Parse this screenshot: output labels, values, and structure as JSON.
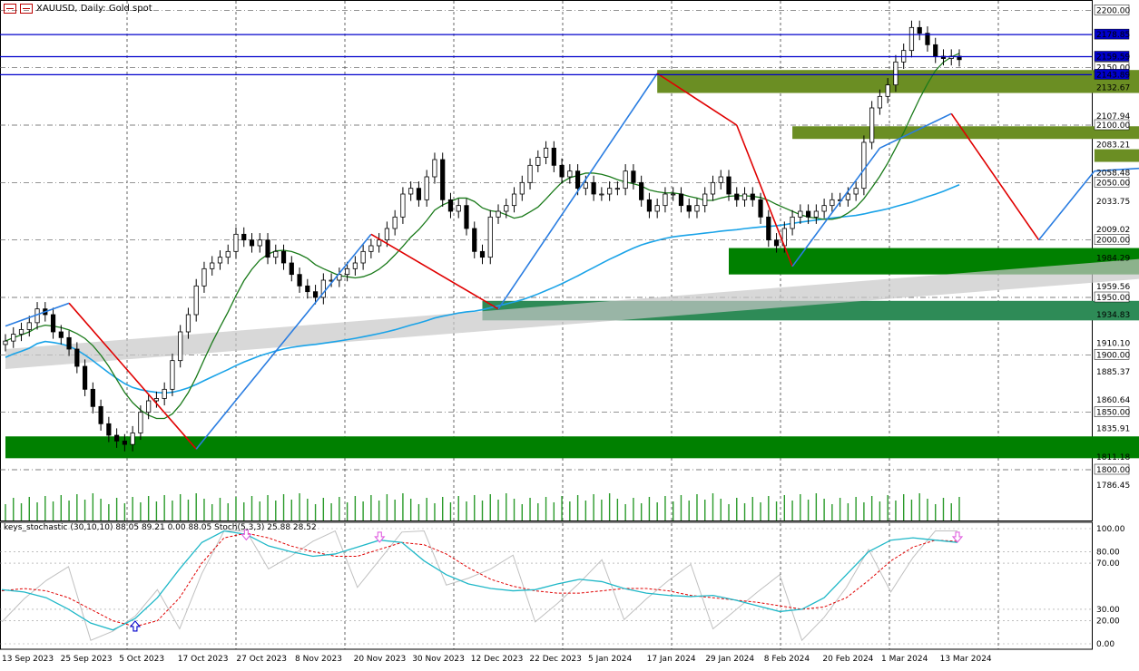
{
  "window": {
    "symbol_title": "XAUUSD, Daily:  Gold spot",
    "indicator_title": "keys_stochastic (30,10,10) 88.05 89.21 0.00 88.05 Stoch(5,3,3) 25.88 28.52"
  },
  "colors": {
    "candle_up": "#ffffff",
    "candle_down": "#000000",
    "zigzag_up": "#2a7de1",
    "zigzag_down": "#e00000",
    "ma_green": "#1a7a1a",
    "ma_blue": "#1aa3e8",
    "zone_olive": "#6b8e23",
    "zone_green": "#008000",
    "zone_teal": "#2e8b57",
    "zone_purple": "#5b1a8f",
    "level_line": "#0000cc",
    "stoch_main": "#20b8c8",
    "stoch_signal": "#e00000",
    "stoch_fast": "#c0c0c0",
    "arrow_marker": "#e060e0"
  },
  "chart_data": [
    {
      "type": "candlestick",
      "title": "XAUUSD, Daily:  Gold spot",
      "ylim": [
        1770,
        2205
      ],
      "y_ticks": [
        "2200.00",
        "2178.85",
        "2159.59",
        "2150.00",
        "2143.89",
        "2132.67",
        "2107.94",
        "2100.00",
        "2083.21",
        "2058.48",
        "2050.00",
        "2033.75",
        "2009.02",
        "2000.00",
        "1984.29",
        "1959.56",
        "1950.00",
        "1934.83",
        "1910.10",
        "1900.00",
        "1885.37",
        "1860.64",
        "1850.00",
        "1835.91",
        "1811.18",
        "1800.00",
        "1786.45"
      ],
      "x_labels": [
        "13 Sep 2023",
        "25 Sep 2023",
        "5 Oct 2023",
        "17 Oct 2023",
        "27 Oct 2023",
        "8 Nov 2023",
        "20 Nov 2023",
        "30 Nov 2023",
        "12 Dec 2023",
        "22 Dec 2023",
        "5 Jan 2024",
        "17 Jan 2024",
        "29 Jan 2024",
        "8 Feb 2024",
        "20 Feb 2024",
        "1 Mar 2024",
        "13 Mar 2024"
      ],
      "horizontal_levels": [
        2178.85,
        2159.59,
        2143.89
      ],
      "round_levels": [
        2200,
        2150,
        2100,
        2050,
        2000,
        1950,
        1900,
        1850,
        1800
      ],
      "close_series": [
        1912,
        1918,
        1922,
        1928,
        1940,
        1935,
        1920,
        1915,
        1905,
        1890,
        1870,
        1855,
        1840,
        1830,
        1825,
        1822,
        1832,
        1850,
        1860,
        1862,
        1870,
        1895,
        1920,
        1935,
        1960,
        1975,
        1980,
        1985,
        1990,
        2005,
        2000,
        1995,
        2000,
        1985,
        1990,
        1980,
        1970,
        1960,
        1955,
        1950,
        1965,
        1965,
        1970,
        1975,
        1980,
        1990,
        1995,
        2000,
        2010,
        2020,
        2040,
        2045,
        2035,
        2055,
        2070,
        2035,
        2025,
        2030,
        2010,
        1990,
        1985,
        2020,
        2025,
        2030,
        2040,
        2050,
        2065,
        2072,
        2080,
        2065,
        2055,
        2060,
        2045,
        2050,
        2040,
        2040,
        2045,
        2045,
        2060,
        2050,
        2035,
        2025,
        2030,
        2040,
        2040,
        2030,
        2025,
        2030,
        2040,
        2050,
        2055,
        2040,
        2035,
        2040,
        2035,
        2020,
        2000,
        1995,
        2010,
        2020,
        2025,
        2020,
        2025,
        2030,
        2035,
        2035,
        2040,
        2045,
        2085,
        2115,
        2125,
        2135,
        2155,
        2165,
        2185,
        2180,
        2170,
        2160,
        2158,
        2160,
        2157
      ],
      "zigzag": [
        [
          0,
          1925
        ],
        [
          8,
          1945
        ],
        [
          24,
          1818
        ],
        [
          46,
          2005
        ],
        [
          62,
          1940
        ],
        [
          82,
          2145
        ],
        [
          92,
          2100
        ],
        [
          99,
          1977
        ],
        [
          110,
          2080
        ],
        [
          119,
          2110
        ],
        [
          130,
          2000
        ],
        [
          137,
          2060
        ],
        [
          149,
          2065
        ],
        [
          163,
          1992
        ],
        [
          185,
          2202
        ]
      ]
    },
    {
      "type": "line",
      "title": "keys_stochastic (30,10,10) 88.05 89.21 0.00 88.05 Stoch(5,3,3) 25.88 28.52",
      "ylim": [
        0,
        100
      ],
      "y_ticks": [
        "100.00",
        "80.00",
        "70.00",
        "30.00",
        "20.00",
        "0.00"
      ],
      "series": [
        {
          "name": "keys_stochastic",
          "values": [
            47,
            45,
            40,
            30,
            18,
            12,
            22,
            40,
            65,
            88,
            98,
            95,
            85,
            80,
            76,
            78,
            84,
            90,
            88,
            72,
            60,
            52,
            48,
            46,
            47,
            52,
            56,
            54,
            48,
            44,
            42,
            41,
            42,
            38,
            33,
            28,
            30,
            40,
            60,
            80,
            90,
            92,
            90,
            88
          ]
        },
        {
          "name": "Stoch",
          "values": [
            46,
            48,
            46,
            40,
            30,
            20,
            15,
            20,
            40,
            70,
            92,
            96,
            92,
            85,
            80,
            76,
            76,
            82,
            88,
            86,
            78,
            66,
            56,
            50,
            46,
            44,
            44,
            46,
            48,
            48,
            46,
            42,
            40,
            38,
            36,
            33,
            30,
            32,
            40,
            55,
            72,
            84,
            90,
            89
          ]
        }
      ],
      "markers": [
        {
          "direction": "up"
        },
        {
          "direction": "down"
        },
        {
          "direction": "down"
        },
        {
          "direction": "down"
        }
      ]
    }
  ]
}
